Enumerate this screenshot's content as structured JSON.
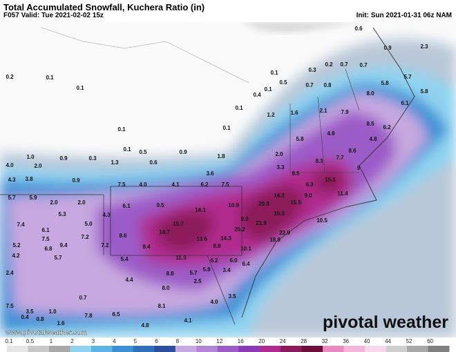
{
  "header": {
    "title": "Total Accumulated Snowfall, Kuchera Ratio (in)",
    "valid": "F057 Valid: Tue 2021-02-02 15z",
    "init": "Init: Sun 2021-01-31 06z NAM"
  },
  "map": {
    "labels": [
      "0.1",
      "0.3",
      "0.2",
      "0.7",
      "0.7",
      "0.9",
      "2.3",
      "0.6",
      "5.7",
      "5.8",
      "5.8",
      "8.0",
      "6.1",
      "0.5",
      "0.1",
      "0.7",
      "0.8",
      "0.2",
      "0.1",
      "0.1",
      "0.4",
      "0.1",
      "1.2",
      "1.6",
      "2.1",
      "7.9",
      "8.5",
      "6.2",
      "0.1",
      "0.1",
      "5.8",
      "4.8",
      "4.8",
      "0.1",
      "0.5",
      "0.9",
      "2.0",
      "8.6",
      "7.7",
      "8.3",
      "1.0",
      "0.9",
      "0.3",
      "4.0",
      "2.0",
      "1.3",
      "0.6",
      "1.8",
      "3.3",
      "9",
      "4.3",
      "3.8",
      "0.9",
      "3.6",
      "8.5",
      "15.1",
      "7.5",
      "4.0",
      "4.1",
      "6.2",
      "7.5",
      "6.3",
      "11.4",
      "5.7",
      "5.9",
      "2.0",
      "2.0",
      "14.2",
      "20.9",
      "15.5",
      "9.0",
      "6.1",
      "9.5",
      "14.1",
      "10.9",
      "4.3",
      "5.3",
      "7.4",
      "5.0",
      "15.7",
      "9.9",
      "16.5",
      "10.5",
      "6.1",
      "8.6",
      "14.7",
      "21.9",
      "20.2",
      "22.9",
      "14.3",
      "13.6",
      "18.9",
      "7.5",
      "7.2",
      "5.2",
      "9.4",
      "6.8",
      "7.2",
      "8.4",
      "8.8",
      "10.1",
      "4.2",
      "5.7",
      "5.4",
      "11.3",
      "6.2",
      "6.0",
      "6.4",
      "5.8",
      "3.4",
      "8.8",
      "5.7",
      "2.4",
      "4.4",
      "2.5",
      "8.0",
      "7.5",
      "3.5",
      "1.0",
      "7.8",
      "6.5",
      "8.1",
      "4.0",
      "3.5",
      "0.8",
      "1.6",
      "4.8",
      "4.1",
      "0.4",
      "0.7"
    ]
  },
  "colorbar": {
    "labels": [
      "0.1",
      "0.5",
      "1",
      "2",
      "3",
      "4",
      "5",
      "6",
      "8",
      "10",
      "12",
      "16",
      "20",
      "24",
      "28",
      "32",
      "36",
      "40",
      "44",
      "52",
      "60"
    ],
    "colors": [
      "#e6e6e6",
      "#c8c8c8",
      "#a9a9a9",
      "#8fd3f0",
      "#5fb4e6",
      "#3a8fd6",
      "#2f6fc0",
      "#2b4ea0",
      "#c7a8e0",
      "#b483d6",
      "#9c5cc8",
      "#8a3bb5",
      "#b02a8e",
      "#8c1a5a",
      "#6e0f3a",
      "#e88ac0",
      "#f2b6d8",
      "#f7d7ea",
      "#cfcfcf",
      "#a8a8a8",
      "#808080"
    ]
  },
  "footer": {
    "url": "www.pivotalweather.com",
    "logo": "pivotal weather"
  }
}
